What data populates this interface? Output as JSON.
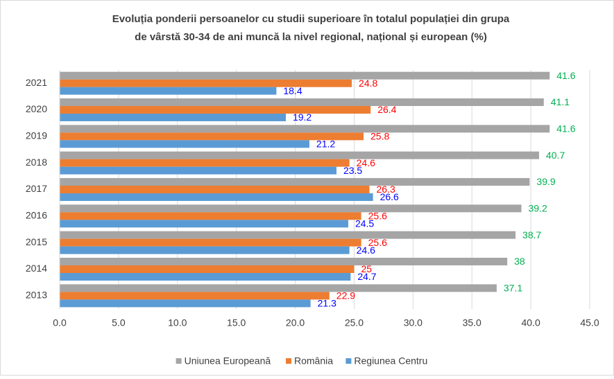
{
  "chart_data": {
    "type": "hbar",
    "title": [
      "Evoluția ponderii persoanelor cu studii superioare în totalul populației din grupa",
      "de vârstă 30-34 de ani muncă la nivel regional, național și european (%)"
    ],
    "categories": [
      "2021",
      "2020",
      "2019",
      "2018",
      "2017",
      "2016",
      "2015",
      "2014",
      "2013"
    ],
    "series": [
      {
        "name": "Uniunea Europeană",
        "color": "#a5a5a5",
        "label_color": "#00b050",
        "values": [
          41.6,
          41.1,
          41.6,
          40.7,
          39.9,
          39.2,
          38.7,
          38,
          37.1
        ]
      },
      {
        "name": "România",
        "color": "#ed7d31",
        "label_color": "#ff0000",
        "values": [
          24.8,
          26.4,
          25.8,
          24.6,
          26.3,
          25.6,
          25.6,
          25,
          22.9
        ]
      },
      {
        "name": "Regiunea Centru",
        "color": "#5b9bd5",
        "label_color": "#0000ff",
        "values": [
          18.4,
          19.2,
          21.2,
          23.5,
          26.6,
          24.5,
          24.6,
          24.7,
          21.3
        ]
      }
    ],
    "xlim": [
      0,
      45
    ],
    "xticks": [
      {
        "value": 0,
        "label": "0.0"
      },
      {
        "value": 5,
        "label": "5.0"
      },
      {
        "value": 10,
        "label": "10.0"
      },
      {
        "value": 15,
        "label": "15.0"
      },
      {
        "value": 20,
        "label": "20.0"
      },
      {
        "value": 25,
        "label": "25.0"
      },
      {
        "value": 30,
        "label": "30.0"
      },
      {
        "value": 35,
        "label": "35.0"
      },
      {
        "value": 40,
        "label": "40.0"
      },
      {
        "value": 45,
        "label": "45.0"
      }
    ],
    "grid": true,
    "legend": "bottom"
  }
}
